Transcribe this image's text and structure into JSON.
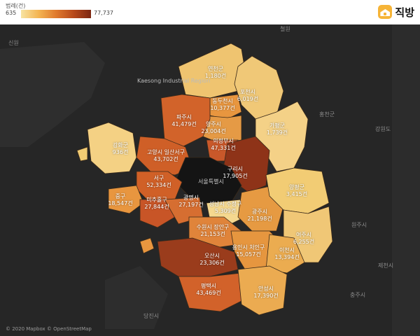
{
  "legend": {
    "title": "범례(건)",
    "min": "635",
    "max": "77,737"
  },
  "brand": {
    "name": "직방"
  },
  "attribution": "© 2020 Mapbox © OpenStreetMap",
  "base_labels": {
    "kaesong": "Kaesong Industrial Region",
    "seoul": "서울특별시",
    "dangjin": "당진시",
    "hongcheon": "홍천군",
    "gangwon": "강원도",
    "wonju": "원주시",
    "jecheon": "제천시",
    "chungju": "충주시",
    "sinwon": "신원",
    "cheolwon": "철원"
  },
  "colors": {
    "low": "#f2cc74",
    "mid": "#ea9c43",
    "high": "#d0612a",
    "top": "#8e3318",
    "map_bg": "#262626",
    "seoul": "#121212"
  },
  "regions": [
    {
      "id": "yeoncheon",
      "name": "연천군",
      "count": "1,180건"
    },
    {
      "id": "pocheon",
      "name": "포천시",
      "count": "6,019건"
    },
    {
      "id": "dongducheon",
      "name": "동두천시",
      "count": "10,377건"
    },
    {
      "id": "paju",
      "name": "파주시",
      "count": "41,479건"
    },
    {
      "id": "yangju",
      "name": "양주시",
      "count": "23,004건"
    },
    {
      "id": "gapyeong",
      "name": "가평군",
      "count": "1,739건"
    },
    {
      "id": "ganghwa",
      "name": "강화군",
      "count": "936건"
    },
    {
      "id": "goyang",
      "name": "고양시 일산서구",
      "count": "43,702건"
    },
    {
      "id": "uijeongbu",
      "name": "의정부시",
      "count": "47,331건"
    },
    {
      "id": "guri",
      "name": "구리시",
      "count": "17,905건"
    },
    {
      "id": "seogu",
      "name": "서구",
      "count": "52,334건"
    },
    {
      "id": "junggu",
      "name": "중구",
      "count": "18,547건"
    },
    {
      "id": "michuhol",
      "name": "미추홀구",
      "count": "27,844건"
    },
    {
      "id": "gwangmyeong",
      "name": "광명시",
      "count": "27,197건"
    },
    {
      "id": "seongnam",
      "name": "성남시 수정구",
      "count": "5,309건"
    },
    {
      "id": "yangpyeong",
      "name": "양평군",
      "count": "3,415건"
    },
    {
      "id": "gwangju",
      "name": "광주시",
      "count": "21,198건"
    },
    {
      "id": "suwon",
      "name": "수원시 장안구",
      "count": "21,153건"
    },
    {
      "id": "yeoju",
      "name": "여주시",
      "count": "6,255건"
    },
    {
      "id": "yongin",
      "name": "용인시 처인구",
      "count": "15,057건"
    },
    {
      "id": "icheon",
      "name": "이천시",
      "count": "13,394건"
    },
    {
      "id": "osan",
      "name": "오산시",
      "count": "23,306건"
    },
    {
      "id": "pyeongtaek",
      "name": "평택시",
      "count": "43,469건"
    },
    {
      "id": "anseong",
      "name": "안성시",
      "count": "17,390건"
    }
  ]
}
